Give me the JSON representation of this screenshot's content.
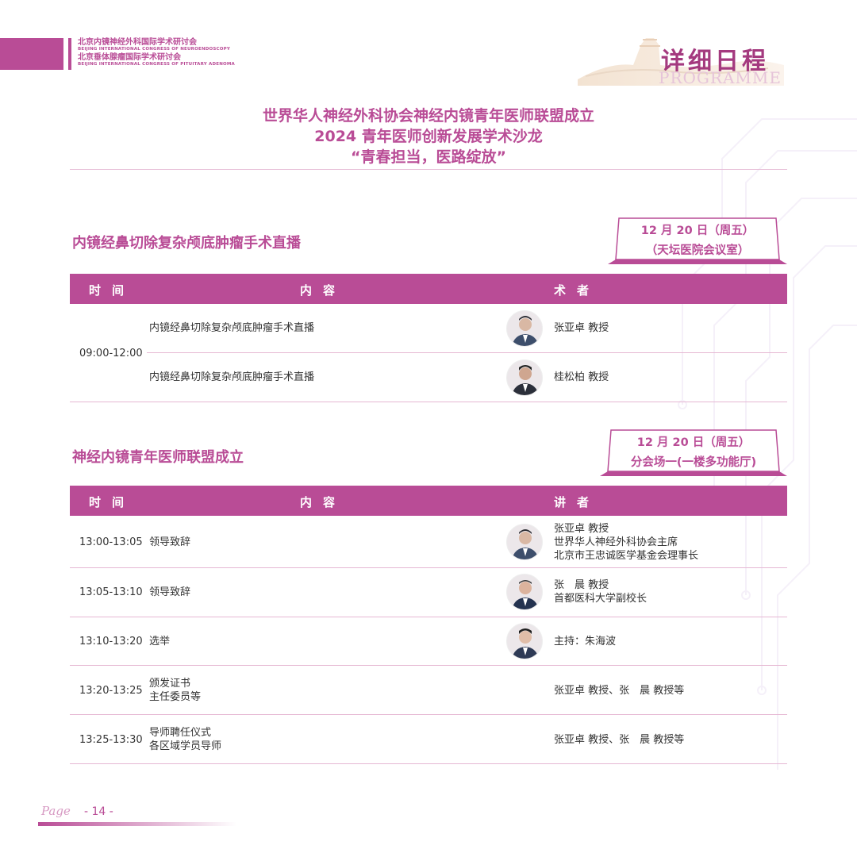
{
  "header": {
    "congress1_cn": "北京内镜神经外科国际学术研讨会",
    "congress1_en": "BEIJING INTERNATIONAL CONGRESS OF NEUROENDOSCOPY",
    "congress2_cn": "北京垂体腺瘤国际学术研讨会",
    "congress2_en": "BEIJING INTERNATIONAL CONGRESS OF PITUITARY ADENOMA",
    "program_cn": "详细日程",
    "program_en": "PROGRAMME"
  },
  "title": {
    "line1": "世界华人神经外科协会神经内镜青年医师联盟成立",
    "line2": "2024 青年医师创新发展学术沙龙",
    "line3": "“青春担当，医路绽放”"
  },
  "session1": {
    "title": "内镜经鼻切除复杂颅底肿瘤手术直播",
    "date": "12 月 20 日（周五）",
    "venue": "（天坛医院会议室）",
    "col_time": "时间",
    "col_content": "内容",
    "col_speaker": "术者",
    "time": "09:00-12:00",
    "rows": [
      {
        "content": "内镜经鼻切除复杂颅底肿瘤手术直播",
        "speaker": "张亚卓 教授"
      },
      {
        "content": "内镜经鼻切除复杂颅底肿瘤手术直播",
        "speaker": "桂松柏 教授"
      }
    ]
  },
  "session2": {
    "title": "神经内镜青年医师联盟成立",
    "date": "12 月 20 日（周五）",
    "venue": "分会场一(一楼多功能厅)",
    "col_time": "时间",
    "col_content": "内容",
    "col_speaker": "讲者",
    "rows": [
      {
        "time": "13:00-13:05",
        "content": [
          "领导致辞"
        ],
        "speaker": [
          "张亚卓 教授",
          "世界华人神经外科协会主席",
          "北京市王忠诚医学基金会理事长"
        ]
      },
      {
        "time": "13:05-13:10",
        "content": [
          "领导致辞"
        ],
        "speaker": [
          "张　晨 教授",
          "首都医科大学副校长"
        ]
      },
      {
        "time": "13:10-13:20",
        "content": [
          "选举"
        ],
        "speaker": [
          "主持：朱海波"
        ]
      },
      {
        "time": "13:20-13:25",
        "content": [
          "颁发证书",
          "主任委员等"
        ],
        "speaker": [
          "张亚卓 教授、张　晨 教授等"
        ]
      },
      {
        "time": "13:25-13:30",
        "content": [
          "导师聘任仪式",
          "各区域学员导师"
        ],
        "speaker": [
          "张亚卓 教授、张　晨 教授等"
        ]
      }
    ]
  },
  "footer": {
    "page_label": "Page",
    "page_number": "- 14 -"
  },
  "colors": {
    "accent": "#b94c96",
    "rule": "#e6b8d3"
  }
}
